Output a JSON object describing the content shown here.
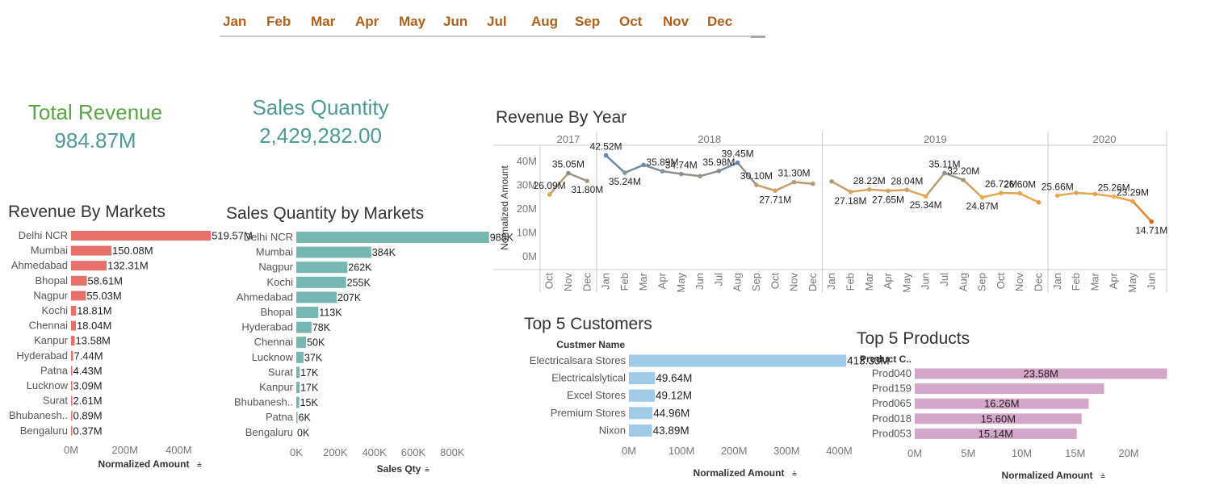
{
  "months": [
    "Jan",
    "Feb",
    "Mar",
    "Apr",
    "May",
    "Jun",
    "Jul",
    "Aug",
    "Sep",
    "Oct",
    "Nov",
    "Dec"
  ],
  "kpis": {
    "revenue": {
      "title": "Total Revenue",
      "value": "984.87M",
      "title_color": "#5ba345"
    },
    "qty": {
      "title": "Sales Quantity",
      "value": "2,429,282.00",
      "title_color": "#4e9a96"
    }
  },
  "filter_icon": "sort-icon",
  "chart_data": [
    {
      "id": "markets_rev",
      "type": "bar",
      "orientation": "horizontal",
      "title": "Revenue By Markets",
      "xlabel": "Normalized Amount",
      "ylabel": "",
      "color": "#e8706a",
      "categories": [
        "Delhi NCR",
        "Mumbai",
        "Ahmedabad",
        "Bhopal",
        "Nagpur",
        "Kochi",
        "Chennai",
        "Kanpur",
        "Hyderabad",
        "Patna",
        "Lucknow",
        "Surat",
        "Bhubanesh..",
        "Bengaluru"
      ],
      "values": [
        519.57,
        150.08,
        132.31,
        58.61,
        55.03,
        18.81,
        18.04,
        13.58,
        7.44,
        4.43,
        3.09,
        2.61,
        0.89,
        0.37
      ],
      "labels": [
        "519.57M",
        "150.08M",
        "132.31M",
        "58.61M",
        "55.03M",
        "18.81M",
        "18.04M",
        "13.58M",
        "7.44M",
        "4.43M",
        "3.09M",
        "2.61M",
        "0.89M",
        "0.37M"
      ],
      "xlim": [
        0,
        525
      ],
      "ticks": [
        0,
        200,
        400
      ],
      "tick_labels": [
        "0M",
        "200M",
        "400M"
      ]
    },
    {
      "id": "markets_qty",
      "type": "bar",
      "orientation": "horizontal",
      "title": "Sales Quantity by Markets",
      "xlabel": "Sales Qty",
      "ylabel": "",
      "color": "#76b7b2",
      "categories": [
        "Delhi NCR",
        "Mumbai",
        "Nagpur",
        "Kochi",
        "Ahmedabad",
        "Bhopal",
        "Hyderabad",
        "Chennai",
        "Lucknow",
        "Surat",
        "Kanpur",
        "Bhubanesh..",
        "Patna",
        "Bengaluru"
      ],
      "values": [
        988,
        384,
        262,
        255,
        207,
        113,
        78,
        50,
        37,
        17,
        17,
        15,
        6,
        0
      ],
      "labels": [
        "988K",
        "384K",
        "262K",
        "255K",
        "207K",
        "113K",
        "78K",
        "50K",
        "37K",
        "17K",
        "17K",
        "15K",
        "6K",
        "0K"
      ],
      "xlim": [
        0,
        985
      ],
      "ticks": [
        0,
        200,
        400,
        600,
        800
      ],
      "tick_labels": [
        "0K",
        "200K",
        "400K",
        "600K",
        "800K"
      ]
    },
    {
      "id": "rev_year",
      "type": "line",
      "title": "Revenue By Year",
      "ylabel": "Normalized Amount",
      "ylim": [
        0,
        45
      ],
      "yticks": [
        0,
        10,
        20,
        30,
        40
      ],
      "ytick_labels": [
        "0M",
        "10M",
        "20M",
        "30M",
        "40M"
      ],
      "years": [
        {
          "year": "2017",
          "months": [
            "Oct",
            "Nov",
            "Dec"
          ],
          "values": [
            26.09,
            35.05,
            31.8
          ],
          "labels": [
            "26.09M",
            "35.05M",
            "31.80M"
          ]
        },
        {
          "year": "2018",
          "months": [
            "Jan",
            "Feb",
            "Mar",
            "Apr",
            "May",
            "Jun",
            "Jul",
            "Aug",
            "Sep",
            "Oct",
            "Nov",
            "Dec"
          ],
          "values": [
            42.52,
            35.24,
            38.5,
            35.89,
            34.74,
            33.8,
            35.98,
            39.45,
            30.1,
            27.71,
            31.3,
            30.6
          ],
          "labels": [
            "42.52M",
            "35.24M",
            "",
            "35.89M",
            "34.74M",
            "",
            "35.98M",
            "39.45M",
            "30.10M",
            "27.71M",
            "31.30M",
            ""
          ]
        },
        {
          "year": "2019",
          "months": [
            "Jan",
            "Feb",
            "Mar",
            "Apr",
            "May",
            "Jun",
            "Jul",
            "Aug",
            "Sep",
            "Oct",
            "Nov",
            "Dec"
          ],
          "values": [
            31.6,
            27.18,
            28.22,
            27.65,
            28.04,
            25.34,
            35.11,
            32.2,
            24.87,
            26.72,
            26.6,
            22.8
          ],
          "labels": [
            "",
            "27.18M",
            "28.22M",
            "27.65M",
            "28.04M",
            "25.34M",
            "35.11M",
            "32.20M",
            "24.87M",
            "26.72M",
            "26.60M",
            ""
          ]
        },
        {
          "year": "2020",
          "months": [
            "Jan",
            "Feb",
            "Mar",
            "Apr",
            "May",
            "Jun"
          ],
          "values": [
            25.66,
            26.8,
            26.3,
            25.26,
            23.29,
            14.71
          ],
          "labels": [
            "25.66M",
            "",
            "",
            "25.26M",
            "23.29M",
            "14.71M"
          ]
        }
      ],
      "color_scale": {
        "low": "#d5661b",
        "mid": "#f0a94a",
        "high": "#5b86b5"
      }
    },
    {
      "id": "top_customers",
      "type": "bar",
      "orientation": "horizontal",
      "title": "Top 5 Customers",
      "header": "Custmer Name",
      "xlabel": "Normalized Amount",
      "color": "#a0cbe8",
      "categories": [
        "Electricalsara Stores",
        "Electricalslytical",
        "Excel Stores",
        "Premium Stores",
        "Nixon"
      ],
      "values": [
        413.33,
        49.64,
        49.12,
        44.96,
        43.89
      ],
      "labels": [
        "413.33M",
        "49.64M",
        "49.12M",
        "44.96M",
        "43.89M"
      ],
      "xlim": [
        0,
        430
      ],
      "ticks": [
        0,
        100,
        200,
        300,
        400
      ],
      "tick_labels": [
        "0M",
        "100M",
        "200M",
        "300M",
        "400M"
      ]
    },
    {
      "id": "top_products",
      "type": "bar",
      "orientation": "horizontal",
      "title": "Top 5 Products",
      "header": "Product C..",
      "xlabel": "Normalized Amount",
      "color": "#d4a6c8",
      "categories": [
        "Prod040",
        "Prod159",
        "Prod065",
        "Prod018",
        "Prod053"
      ],
      "values": [
        23.58,
        17.7,
        16.26,
        15.6,
        15.14
      ],
      "labels": [
        "23.58M",
        "",
        "16.26M",
        "15.60M",
        "15.14M"
      ],
      "xlim": [
        0,
        24
      ],
      "ticks": [
        0,
        5,
        10,
        15,
        20
      ],
      "tick_labels": [
        "0M",
        "5M",
        "10M",
        "15M",
        "20M"
      ]
    }
  ]
}
